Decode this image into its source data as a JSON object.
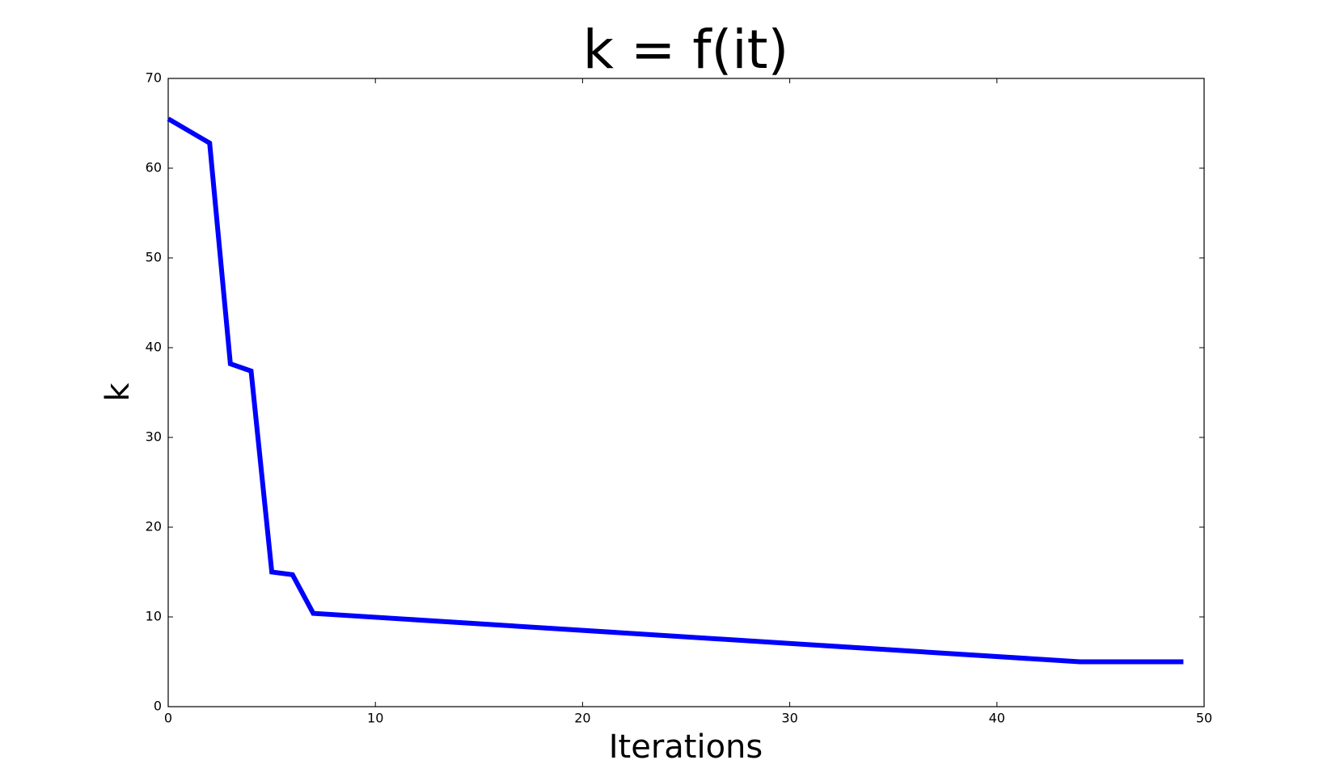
{
  "chart_data": {
    "type": "line",
    "title": "k = f(it)",
    "x_label": "Iterations",
    "y_label": "k",
    "x": [
      0,
      2,
      3,
      4,
      5,
      6,
      7,
      44,
      49
    ],
    "series": [
      {
        "name": "k",
        "color": "#0000ff",
        "values": [
          65.5,
          62.8,
          38.2,
          37.4,
          15,
          14.7,
          10.4,
          5,
          5
        ]
      }
    ],
    "xlim": [
      0,
      50
    ],
    "xticks": [
      0,
      10,
      20,
      30,
      40,
      50
    ],
    "ylim": [
      0,
      70
    ],
    "yticks": [
      0,
      10,
      20,
      30,
      40,
      50,
      60,
      70
    ]
  }
}
